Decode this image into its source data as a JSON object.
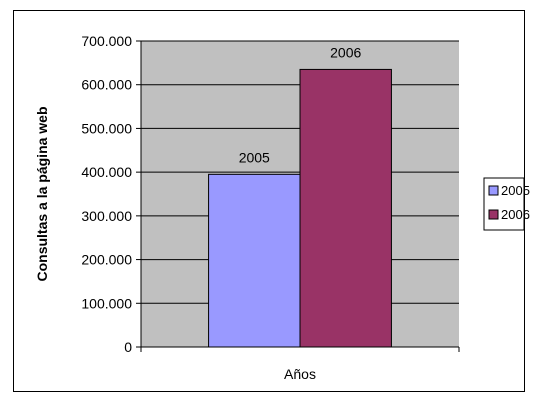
{
  "chart_data": {
    "type": "bar",
    "categories": [
      "Años"
    ],
    "series": [
      {
        "name": "2005",
        "values": [
          395000
        ],
        "color": "#9999ff",
        "data_label": "2005"
      },
      {
        "name": "2006",
        "values": [
          635000
        ],
        "color": "#993366",
        "data_label": "2006"
      }
    ],
    "xlabel": "Años",
    "ylabel": "Consultas a la página web",
    "ylim": [
      0,
      700000
    ],
    "yticks": [
      0,
      100000,
      200000,
      300000,
      400000,
      500000,
      600000,
      700000
    ],
    "ytick_labels": [
      "0",
      "100.000",
      "200.000",
      "300.000",
      "400.000",
      "500.000",
      "600.000",
      "700.000"
    ],
    "grid": true,
    "plot_background": "#c0c0c0",
    "legend_position": "right"
  }
}
